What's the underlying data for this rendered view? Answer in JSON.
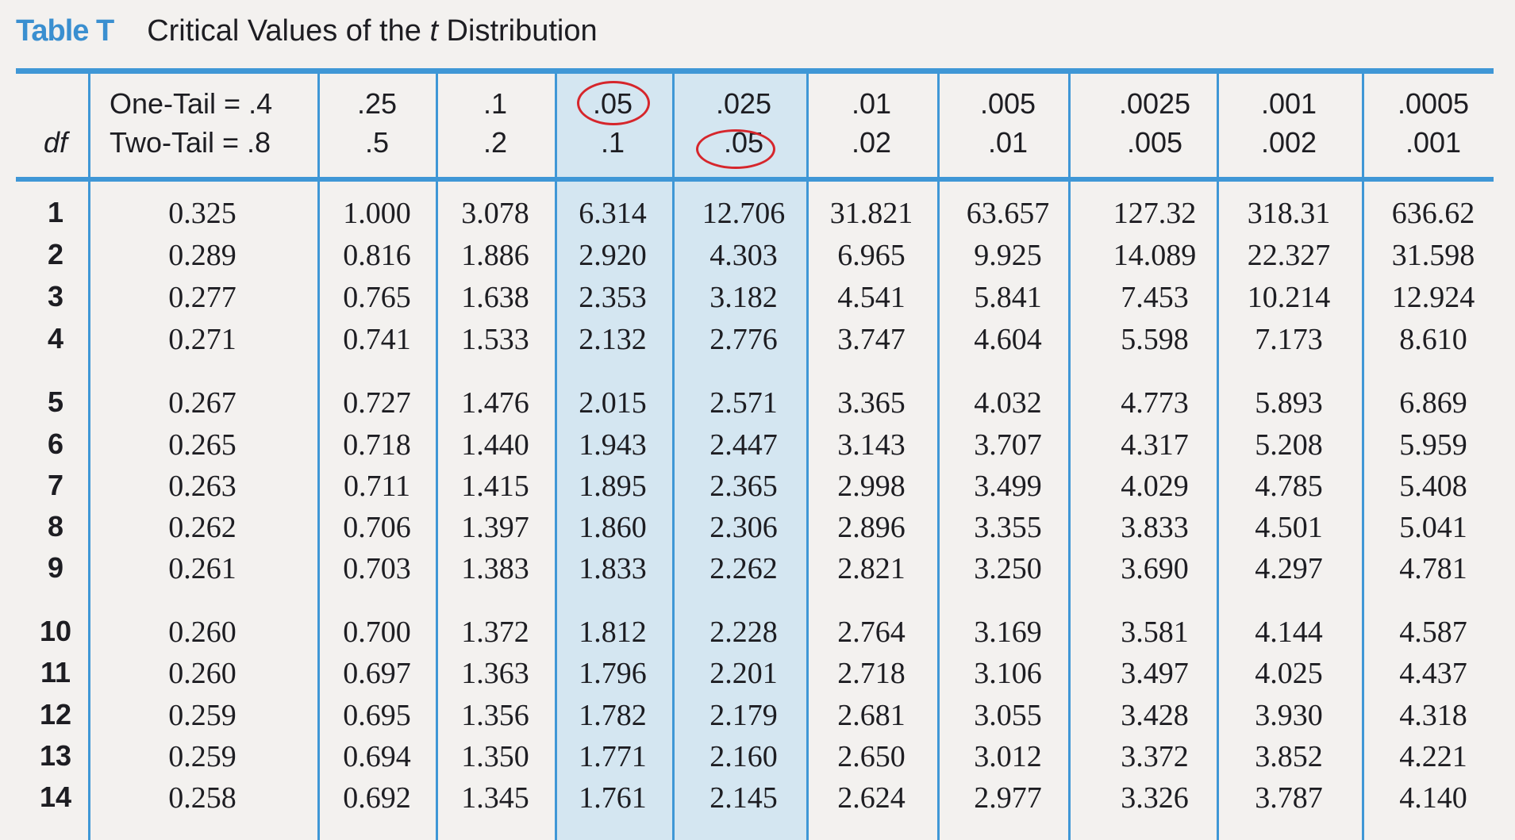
{
  "title": {
    "label": "Table T",
    "caption_pre": "Critical Values of the ",
    "caption_it": "t",
    "caption_post": " Distribution"
  },
  "header": {
    "df_label": "df",
    "one_tail_label": "One-Tail = .4",
    "two_tail_label": "Two-Tail = .8",
    "columns": [
      {
        "one": ".25",
        "two": ".5"
      },
      {
        "one": ".1",
        "two": ".2"
      },
      {
        "one": ".05",
        "two": ".1"
      },
      {
        "one": ".025",
        "two": ".05"
      },
      {
        "one": ".01",
        "two": ".02"
      },
      {
        "one": ".005",
        "two": ".01"
      },
      {
        "one": ".0025",
        "two": ".005"
      },
      {
        "one": ".001",
        "two": ".002"
      },
      {
        "one": ".0005",
        "two": ".001"
      }
    ]
  },
  "rows": [
    {
      "df": "1",
      "v": [
        "0.325",
        "1.000",
        "3.078",
        "6.314",
        "12.706",
        "31.821",
        "63.657",
        "127.32",
        "318.31",
        "636.62"
      ]
    },
    {
      "df": "2",
      "v": [
        "0.289",
        "0.816",
        "1.886",
        "2.920",
        "4.303",
        "6.965",
        "9.925",
        "14.089",
        "22.327",
        "31.598"
      ]
    },
    {
      "df": "3",
      "v": [
        "0.277",
        "0.765",
        "1.638",
        "2.353",
        "3.182",
        "4.541",
        "5.841",
        "7.453",
        "10.214",
        "12.924"
      ]
    },
    {
      "df": "4",
      "v": [
        "0.271",
        "0.741",
        "1.533",
        "2.132",
        "2.776",
        "3.747",
        "4.604",
        "5.598",
        "7.173",
        "8.610"
      ]
    },
    {
      "df": "5",
      "v": [
        "0.267",
        "0.727",
        "1.476",
        "2.015",
        "2.571",
        "3.365",
        "4.032",
        "4.773",
        "5.893",
        "6.869"
      ]
    },
    {
      "df": "6",
      "v": [
        "0.265",
        "0.718",
        "1.440",
        "1.943",
        "2.447",
        "3.143",
        "3.707",
        "4.317",
        "5.208",
        "5.959"
      ]
    },
    {
      "df": "7",
      "v": [
        "0.263",
        "0.711",
        "1.415",
        "1.895",
        "2.365",
        "2.998",
        "3.499",
        "4.029",
        "4.785",
        "5.408"
      ]
    },
    {
      "df": "8",
      "v": [
        "0.262",
        "0.706",
        "1.397",
        "1.860",
        "2.306",
        "2.896",
        "3.355",
        "3.833",
        "4.501",
        "5.041"
      ]
    },
    {
      "df": "9",
      "v": [
        "0.261",
        "0.703",
        "1.383",
        "1.833",
        "2.262",
        "2.821",
        "3.250",
        "3.690",
        "4.297",
        "4.781"
      ]
    },
    {
      "df": "10",
      "v": [
        "0.260",
        "0.700",
        "1.372",
        "1.812",
        "2.228",
        "2.764",
        "3.169",
        "3.581",
        "4.144",
        "4.587"
      ]
    },
    {
      "df": "11",
      "v": [
        "0.260",
        "0.697",
        "1.363",
        "1.796",
        "2.201",
        "2.718",
        "3.106",
        "3.497",
        "4.025",
        "4.437"
      ]
    },
    {
      "df": "12",
      "v": [
        "0.259",
        "0.695",
        "1.356",
        "1.782",
        "2.179",
        "2.681",
        "3.055",
        "3.428",
        "3.930",
        "4.318"
      ]
    },
    {
      "df": "13",
      "v": [
        "0.259",
        "0.694",
        "1.350",
        "1.771",
        "2.160",
        "2.650",
        "3.012",
        "3.372",
        "3.852",
        "4.221"
      ]
    },
    {
      "df": "14",
      "v": [
        "0.258",
        "0.692",
        "1.345",
        "1.761",
        "2.145",
        "2.624",
        "2.977",
        "3.326",
        "3.787",
        "4.140"
      ]
    }
  ],
  "colors": {
    "accent_blue": "#3f97d6",
    "shade": "#d4e6f1",
    "circle_red": "#d6262c"
  }
}
